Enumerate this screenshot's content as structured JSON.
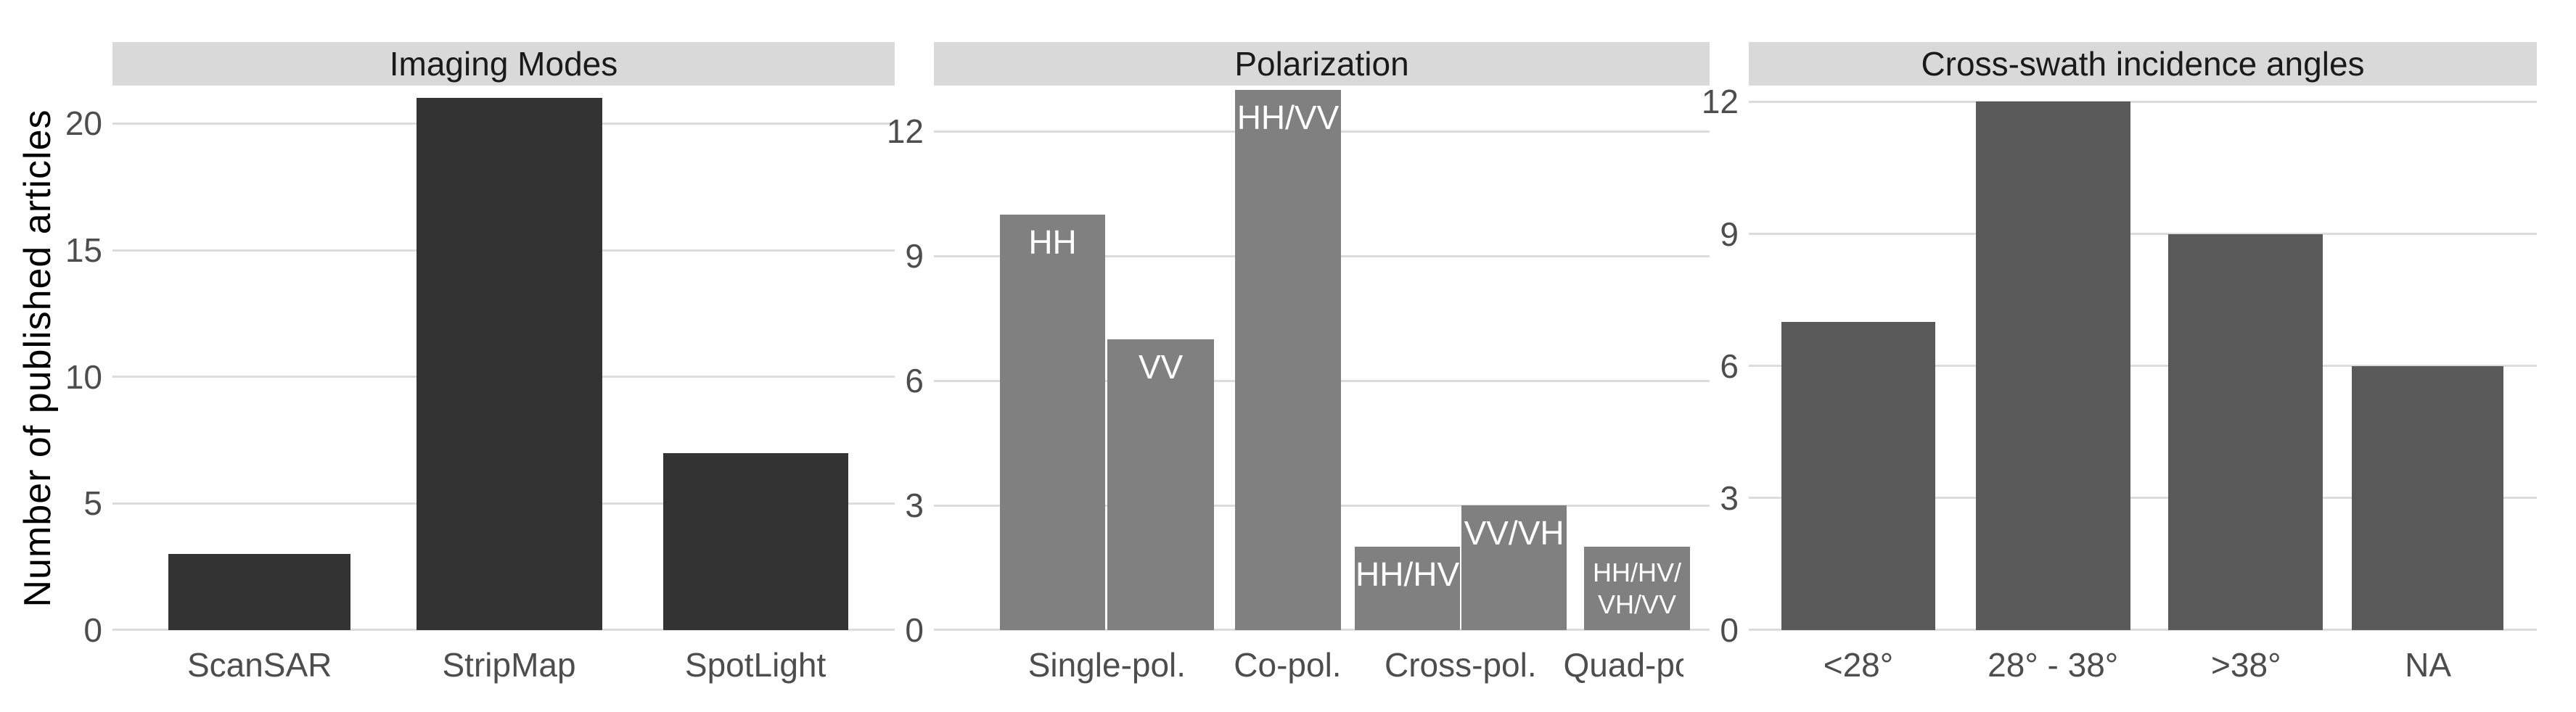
{
  "figure": {
    "y_axis_title": "Number of published articles",
    "colors": {
      "background": "#ffffff",
      "strip_background": "#d9d9d9",
      "strip_text": "#1a1a1a",
      "gridline": "#dcdcdc",
      "tick_label": "#4d4d4d",
      "axis_title": "#000000",
      "bar_label": "#ffffff",
      "bar_fill_imaging_modes": "#333333",
      "bar_fill_polarization": "#808080",
      "bar_fill_incidence": "#595959"
    }
  },
  "chart_data": [
    {
      "type": "bar",
      "title": "Imaging Modes",
      "ylabel": "Number of published articles",
      "bar_color": "#333333",
      "yticks": [
        0,
        5,
        10,
        15,
        20
      ],
      "ylim": [
        0,
        21.5
      ],
      "grid": "horizontal-major",
      "groups": [
        {
          "label": "ScanSAR",
          "bars": [
            {
              "value": 3
            }
          ]
        },
        {
          "label": "StripMap",
          "bars": [
            {
              "value": 21
            }
          ]
        },
        {
          "label": "SpotLight",
          "bars": [
            {
              "value": 7
            }
          ]
        }
      ]
    },
    {
      "type": "bar",
      "title": "Polarization",
      "bar_color": "#808080",
      "yticks": [
        0,
        3,
        6,
        9,
        12
      ],
      "ylim": [
        0,
        13.1
      ],
      "grid": "horizontal-major",
      "groups": [
        {
          "label": "Single-pol.",
          "bars": [
            {
              "name": "HH",
              "value": 10
            },
            {
              "name": "VV",
              "value": 7
            }
          ]
        },
        {
          "label": "Co-pol.",
          "bars": [
            {
              "name": "HH/VV",
              "value": 13
            }
          ]
        },
        {
          "label": "Cross-pol.",
          "bars": [
            {
              "name": "HH/HV",
              "value": 2
            },
            {
              "name": "VV/VH",
              "value": 3
            }
          ]
        },
        {
          "label": "Quad-pol.",
          "clipped": true,
          "bars": [
            {
              "name": "HH/HV/VH/VV",
              "value": 2,
              "label_lines": [
                "HH/HV/",
                "VH/VV"
              ]
            }
          ]
        }
      ]
    },
    {
      "type": "bar",
      "title": "Cross-swath incidence angles",
      "bar_color": "#595959",
      "yticks": [
        0,
        3,
        6,
        9,
        12
      ],
      "ylim": [
        0,
        12.37
      ],
      "grid": "horizontal-major",
      "groups": [
        {
          "label": "<28°",
          "bars": [
            {
              "value": 7
            }
          ]
        },
        {
          "label": "28° - 38°",
          "bars": [
            {
              "value": 12
            }
          ]
        },
        {
          "label": ">38°",
          "bars": [
            {
              "value": 9
            }
          ]
        },
        {
          "label": "NA",
          "bars": [
            {
              "value": 6
            }
          ]
        }
      ]
    }
  ]
}
